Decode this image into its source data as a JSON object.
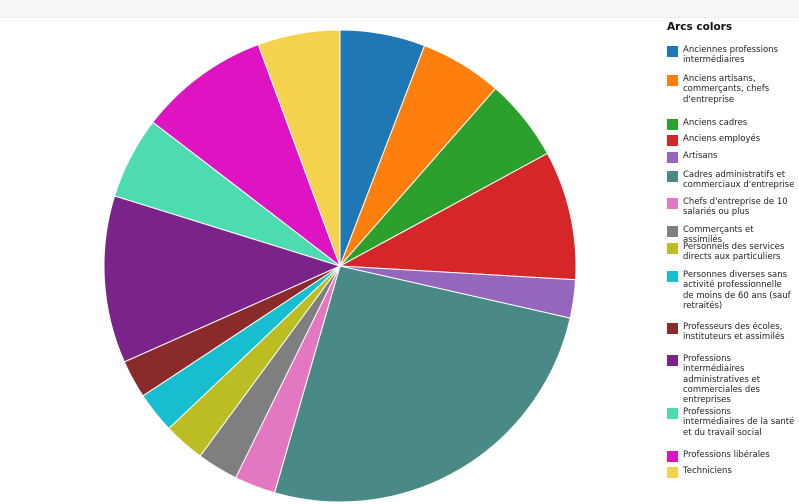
{
  "chart_data": {
    "type": "pie",
    "legend_title": "Arcs colors",
    "legend_position": "right",
    "start_angle_deg": 0,
    "direction": "clockwise",
    "slices": [
      {
        "label": "Anciennes professions intermédiaires",
        "value": 5.8,
        "color": "#1f77b4"
      },
      {
        "label": "Anciens artisans, commerçants, chefs d'entreprise",
        "value": 5.6,
        "color": "#ff7f0e"
      },
      {
        "label": "Anciens cadres",
        "value": 5.6,
        "color": "#2ca02c"
      },
      {
        "label": "Anciens employés",
        "value": 8.8,
        "color": "#d62728"
      },
      {
        "label": "Artisans",
        "value": 2.6,
        "color": "#9467bd"
      },
      {
        "label": "Cadres administratifs et commerciaux d'entreprise",
        "value": 25.8,
        "color": "#4a8a86"
      },
      {
        "label": "Chefs d'entreprise de 10 salariés ou plus",
        "value": 2.8,
        "color": "#e377c2"
      },
      {
        "label": "Commerçants et assimilés",
        "value": 2.8,
        "color": "#7f7f7f"
      },
      {
        "label": "Personnels des services directs aux particuliers",
        "value": 2.8,
        "color": "#bcbd22"
      },
      {
        "label": "Personnes diverses sans activité professionnelle de moins de 60 ans (sauf retraités)",
        "value": 2.8,
        "color": "#17becf"
      },
      {
        "label": "Professeurs des écoles, instituteurs et assimilés",
        "value": 2.6,
        "color": "#8b2a2a"
      },
      {
        "label": "Professions intermédiaires administratives et commerciales des entreprises",
        "value": 11.4,
        "color": "#7a2388"
      },
      {
        "label": "Professions intermédiaires de la santé et du travail social",
        "value": 5.6,
        "color": "#4fdbb1"
      },
      {
        "label": "Professions libérales",
        "value": 8.9,
        "color": "#de14c2"
      },
      {
        "label": "Techniciens",
        "value": 5.6,
        "color": "#f4d24e"
      }
    ]
  }
}
